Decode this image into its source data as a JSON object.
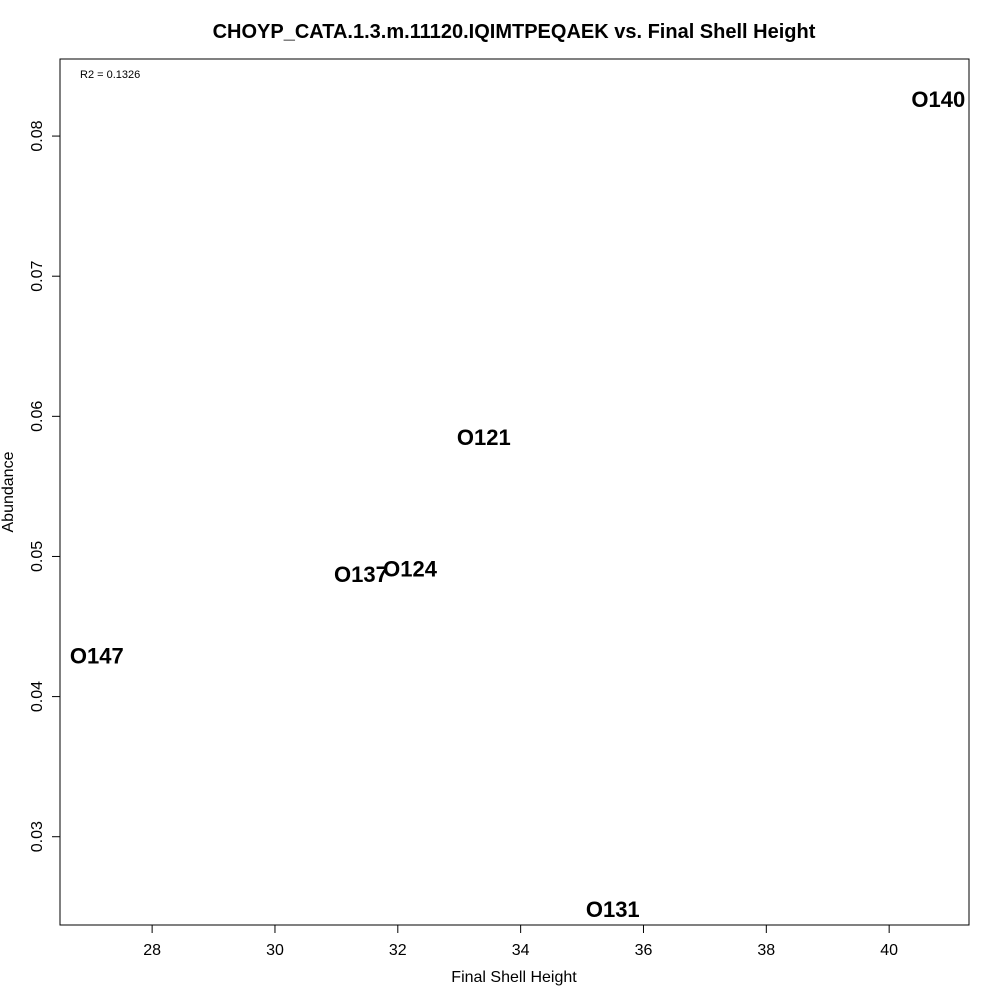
{
  "chart_data": {
    "type": "scatter",
    "title": "CHOYP_CATA.1.3.m.11120.IQIMTPEQAEK vs. Final Shell Height",
    "xlabel": "Final Shell Height",
    "ylabel": "Abundance",
    "xlim": [
      26.5,
      41.3
    ],
    "ylim": [
      0.0237,
      0.0855
    ],
    "xticks": [
      28,
      30,
      32,
      34,
      36,
      38,
      40
    ],
    "xtick_labels": [
      "28",
      "30",
      "32",
      "34",
      "36",
      "38",
      "40"
    ],
    "yticks": [
      0.03,
      0.04,
      0.05,
      0.06,
      0.07,
      0.08
    ],
    "ytick_labels": [
      "0.03",
      "0.04",
      "0.05",
      "0.06",
      "0.07",
      "0.08"
    ],
    "annotation": "R2 = 0.1326",
    "grid": false,
    "points": [
      {
        "label": "O140",
        "x": 40.8,
        "y": 0.0826
      },
      {
        "label": "O121",
        "x": 33.4,
        "y": 0.0585
      },
      {
        "label": "O124",
        "x": 32.2,
        "y": 0.0491
      },
      {
        "label": "O137",
        "x": 31.4,
        "y": 0.0487
      },
      {
        "label": "O147",
        "x": 27.1,
        "y": 0.0429
      },
      {
        "label": "O131",
        "x": 35.5,
        "y": 0.0248
      }
    ]
  }
}
